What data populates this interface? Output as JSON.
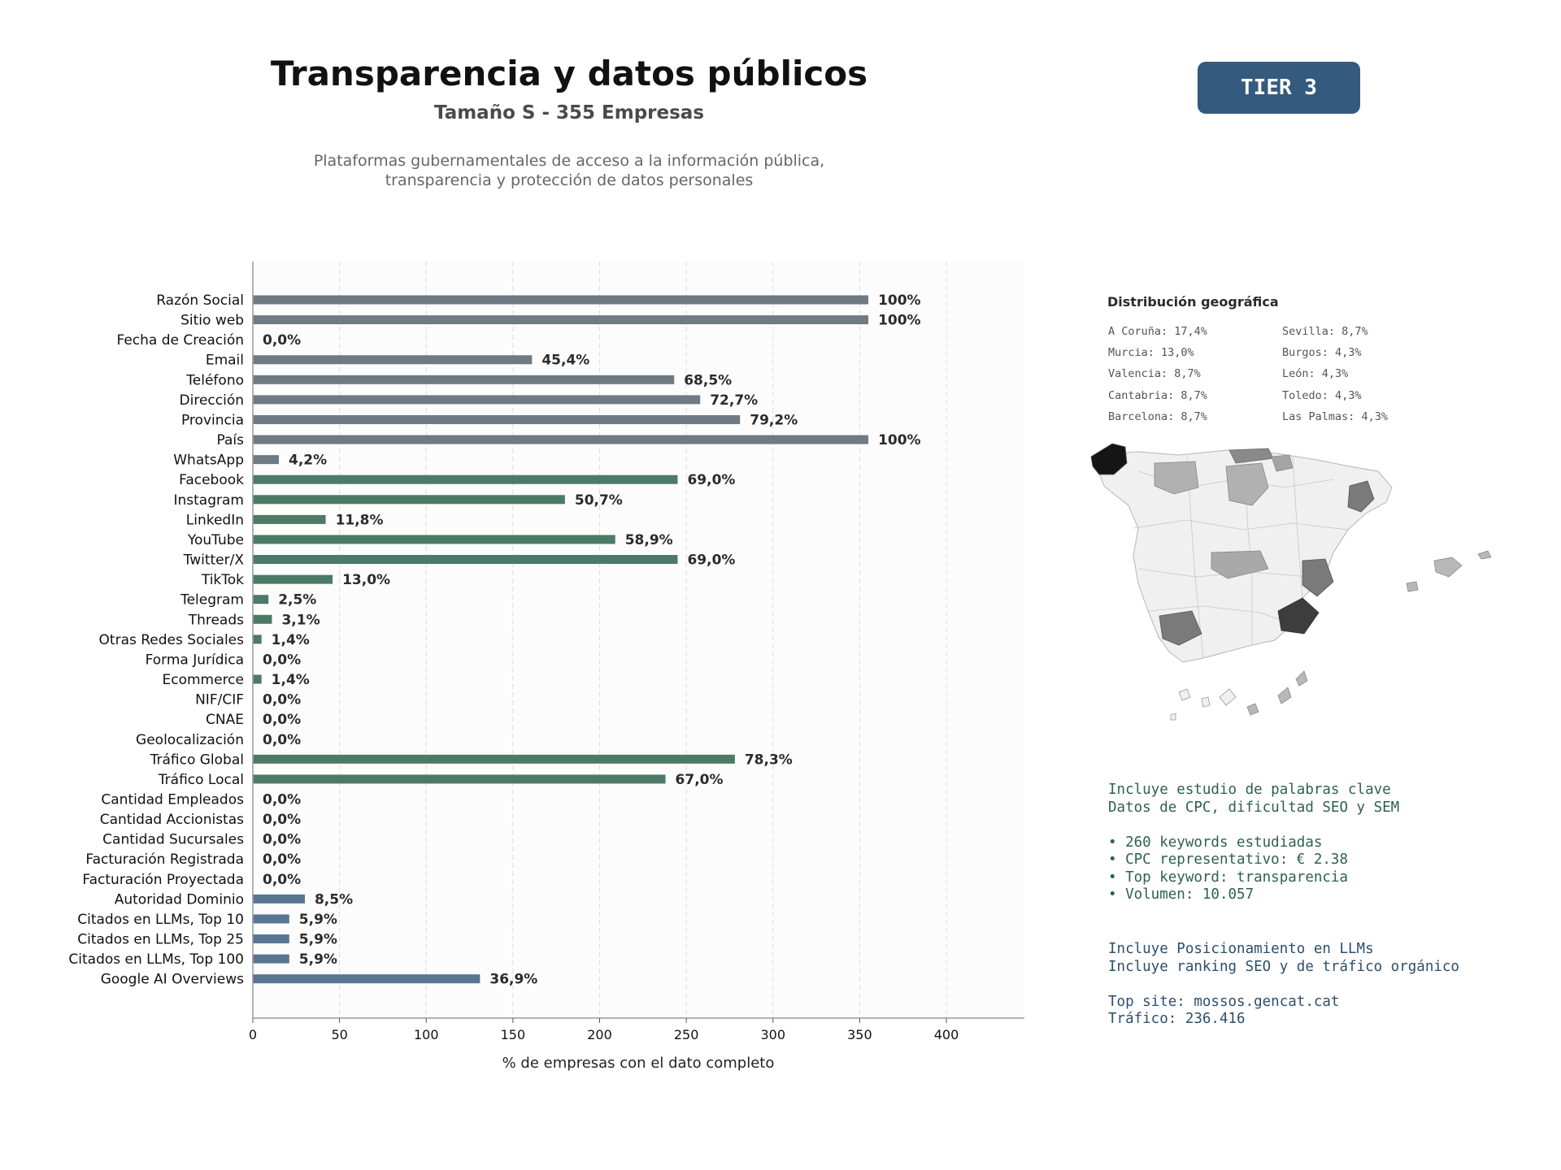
{
  "header": {
    "title": "Transparencia y datos públicos",
    "subtitle": "Tamaño S - 355 Empresas",
    "description_lines": [
      "Plataformas gubernamentales de acceso a la información pública,",
      "transparencia y protección de datos personales"
    ],
    "tier": "TIER 3"
  },
  "colors": {
    "gray_bar": "#6f7a84",
    "green_bar": "#4c7a66",
    "blue_bar": "#587592",
    "tier_bg": "#345a7e"
  },
  "chart_data": {
    "type": "bar",
    "orientation": "horizontal",
    "xlabel": "% de empresas con el dato completo",
    "xlim": [
      0,
      445
    ],
    "xticks": [
      0,
      50,
      100,
      150,
      200,
      250,
      300,
      350,
      400
    ],
    "grid": true,
    "categories": [
      "Razón Social",
      "Sitio web",
      "Fecha de Creación",
      "Email",
      "Teléfono",
      "Dirección",
      "Provincia",
      "País",
      "WhatsApp",
      "Facebook",
      "Instagram",
      "LinkedIn",
      "YouTube",
      "Twitter/X",
      "TikTok",
      "Telegram",
      "Threads",
      "Otras Redes Sociales",
      "Forma Jurídica",
      "Ecommerce",
      "NIF/CIF",
      "CNAE",
      "Geolocalización",
      "Tráfico Global",
      "Tráfico Local",
      "Cantidad Empleados",
      "Cantidad Accionistas",
      "Cantidad Sucursales",
      "Facturación Registrada",
      "Facturación Proyectada",
      "Autoridad Dominio",
      "Citados en LLMs, Top 10",
      "Citados en LLMs, Top 25",
      "Citados en LLMs, Top 100",
      "Google AI Overviews"
    ],
    "values": [
      355,
      355,
      0,
      161,
      243,
      258,
      281,
      355,
      15,
      245,
      180,
      42,
      209,
      245,
      46,
      9,
      11,
      5,
      0,
      5,
      0,
      0,
      0,
      278,
      238,
      0,
      0,
      0,
      0,
      0,
      30,
      21,
      21,
      21,
      131
    ],
    "labels": [
      "100%",
      "100%",
      "0,0%",
      "45,4%",
      "68,5%",
      "72,7%",
      "79,2%",
      "100%",
      "4,2%",
      "69,0%",
      "50,7%",
      "11,8%",
      "58,9%",
      "69,0%",
      "13,0%",
      "2,5%",
      "3,1%",
      "1,4%",
      "0,0%",
      "1,4%",
      "0,0%",
      "0,0%",
      "0,0%",
      "78,3%",
      "67,0%",
      "0,0%",
      "0,0%",
      "0,0%",
      "0,0%",
      "0,0%",
      "8,5%",
      "5,9%",
      "5,9%",
      "5,9%",
      "36,9%"
    ],
    "groups": [
      "gray",
      "gray",
      "gray",
      "gray",
      "gray",
      "gray",
      "gray",
      "gray",
      "gray",
      "green",
      "green",
      "green",
      "green",
      "green",
      "green",
      "green",
      "green",
      "green",
      "green",
      "green",
      "green",
      "green",
      "green",
      "green",
      "green",
      "green",
      "green",
      "green",
      "green",
      "green",
      "blue",
      "blue",
      "blue",
      "blue",
      "blue"
    ]
  },
  "geo": {
    "title": "Distribución geográfica",
    "left_column": [
      "A Coruña: 17,4%",
      "Murcia: 13,0%",
      "Valencia: 8,7%",
      "Cantabria: 8,7%",
      "Barcelona: 8,7%"
    ],
    "right_column": [
      "Sevilla: 8,7%",
      "Burgos: 4,3%",
      "León: 4,3%",
      "Toledo: 4,3%",
      "Las Palmas: 4,3%"
    ]
  },
  "keywords": {
    "lines": [
      "Incluye estudio de palabras clave",
      "Datos de CPC, dificultad SEO y SEM",
      "",
      "• 260 keywords estudiadas",
      "• CPC representativo: € 2.38",
      "• Top keyword: transparencia",
      "• Volumen: 10.057"
    ]
  },
  "llm": {
    "lines": [
      "Incluye Posicionamiento en LLMs",
      "Incluye ranking SEO y de tráfico orgánico",
      "",
      "Top site: mossos.gencat.cat",
      "Tráfico: 236.416"
    ]
  }
}
